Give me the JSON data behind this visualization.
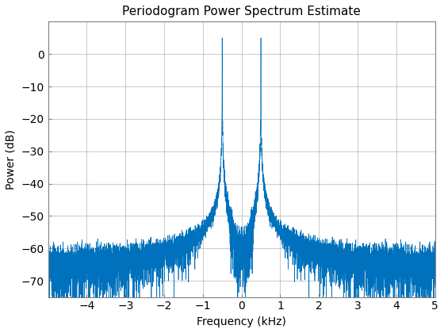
{
  "title": "Periodogram Power Spectrum Estimate",
  "xlabel": "Frequency (kHz)",
  "ylabel": "Power (dB)",
  "xlim": [
    -5,
    5
  ],
  "ylim": [
    -75,
    10
  ],
  "xticks": [
    -4,
    -3,
    -2,
    -1,
    0,
    1,
    2,
    3,
    4,
    5
  ],
  "yticks": [
    0,
    -10,
    -20,
    -30,
    -40,
    -50,
    -60,
    -70
  ],
  "line_color": "#0072BD",
  "fs_kHz": 10,
  "signal_freq_kHz": 0.5,
  "N": 8192,
  "bg_color": "#ffffff",
  "grid_color": "#b0b0b0",
  "title_fontsize": 11,
  "label_fontsize": 10,
  "tick_fontsize": 10
}
